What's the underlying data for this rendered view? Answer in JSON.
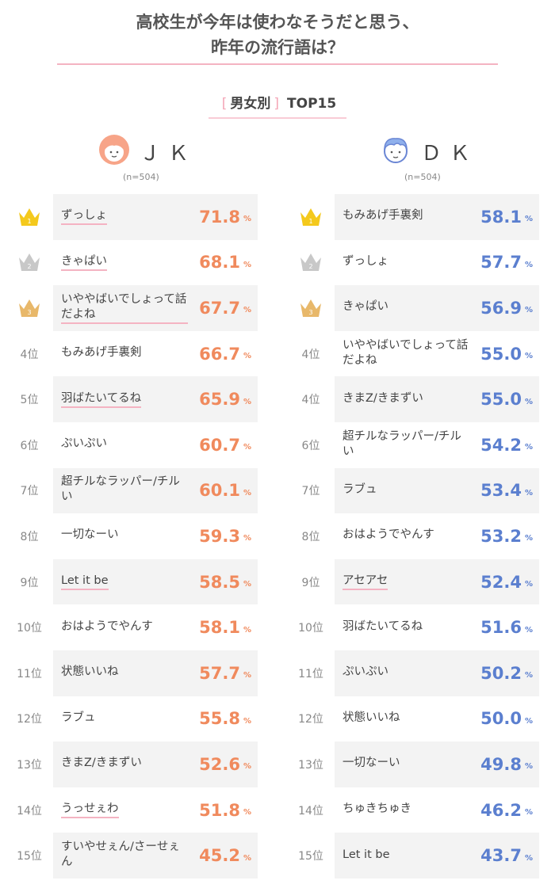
{
  "title": {
    "line1": "高校生が今年は使わなそうだと思う、",
    "line2": "昨年の流行語は？"
  },
  "subtitle": {
    "open_bracket": "[",
    "category": "男女別",
    "close_bracket": "]",
    "label": "TOP15"
  },
  "colors": {
    "pink_accent": "#f4b3c2",
    "jk_value": "#f08a5d",
    "dk_value": "#5b7fcf",
    "row_shade": "#f3f3f3",
    "gold": "#f4c91c",
    "silver": "#c8c8c8",
    "bronze": "#e8b86a"
  },
  "chart_data": [
    {
      "type": "table",
      "group": "ＪＫ",
      "n": "(n=504)",
      "unit": "%",
      "rows": [
        {
          "rank": "1",
          "label": "ずっしょ",
          "value": "71.8",
          "underline": true
        },
        {
          "rank": "2",
          "label": "きゃぱい",
          "value": "68.1",
          "underline": true
        },
        {
          "rank": "3",
          "label": "いややばいでしょって話だよね",
          "value": "67.7",
          "underline": true
        },
        {
          "rank": "4位",
          "label": "もみあげ手裏剣",
          "value": "66.7",
          "underline": false
        },
        {
          "rank": "5位",
          "label": "羽ばたいてるね",
          "value": "65.9",
          "underline": true
        },
        {
          "rank": "6位",
          "label": "ぷいぷい",
          "value": "60.7",
          "underline": false
        },
        {
          "rank": "7位",
          "label": "超チルなラッパー/チルい",
          "value": "60.1",
          "underline": false
        },
        {
          "rank": "8位",
          "label": "一切なーい",
          "value": "59.3",
          "underline": false
        },
        {
          "rank": "9位",
          "label": "Let it be",
          "value": "58.5",
          "underline": true
        },
        {
          "rank": "10位",
          "label": "おはようでやんす",
          "value": "58.1",
          "underline": false
        },
        {
          "rank": "11位",
          "label": "状態いいね",
          "value": "57.7",
          "underline": false
        },
        {
          "rank": "12位",
          "label": "ラブュ",
          "value": "55.8",
          "underline": false
        },
        {
          "rank": "13位",
          "label": "きまZ/きまずい",
          "value": "52.6",
          "underline": false
        },
        {
          "rank": "14位",
          "label": "うっせぇわ",
          "value": "51.8",
          "underline": true
        },
        {
          "rank": "15位",
          "label": "すいやせぇん/さーせぇん",
          "value": "45.2",
          "underline": false
        }
      ]
    },
    {
      "type": "table",
      "group": "ＤＫ",
      "n": "(n=504)",
      "unit": "%",
      "rows": [
        {
          "rank": "1",
          "label": "もみあげ手裏剣",
          "value": "58.1",
          "underline": false
        },
        {
          "rank": "2",
          "label": "ずっしょ",
          "value": "57.7",
          "underline": false
        },
        {
          "rank": "3",
          "label": "きゃぱい",
          "value": "56.9",
          "underline": false
        },
        {
          "rank": "4位",
          "label": "いややばいでしょって話だよね",
          "value": "55.0",
          "underline": false
        },
        {
          "rank": "4位",
          "label": "きまZ/きまずい",
          "value": "55.0",
          "underline": false
        },
        {
          "rank": "6位",
          "label": "超チルなラッパー/チルい",
          "value": "54.2",
          "underline": false
        },
        {
          "rank": "7位",
          "label": "ラブュ",
          "value": "53.4",
          "underline": false
        },
        {
          "rank": "8位",
          "label": "おはようでやんす",
          "value": "53.2",
          "underline": false
        },
        {
          "rank": "9位",
          "label": "アセアセ",
          "value": "52.4",
          "underline": true
        },
        {
          "rank": "10位",
          "label": "羽ばたいてるね",
          "value": "51.6",
          "underline": false
        },
        {
          "rank": "11位",
          "label": "ぷいぷい",
          "value": "50.2",
          "underline": false
        },
        {
          "rank": "12位",
          "label": "状態いいね",
          "value": "50.0",
          "underline": false
        },
        {
          "rank": "13位",
          "label": "一切なーい",
          "value": "49.8",
          "underline": false
        },
        {
          "rank": "14位",
          "label": "ちゅきちゅき",
          "value": "46.2",
          "underline": false
        },
        {
          "rank": "15位",
          "label": "Let it be",
          "value": "43.7",
          "underline": false
        }
      ]
    }
  ]
}
